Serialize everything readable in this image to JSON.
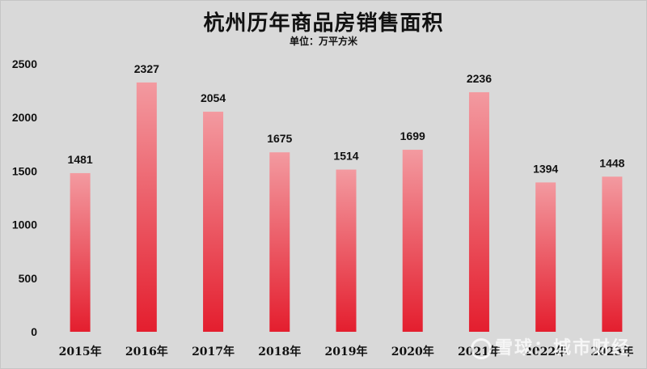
{
  "chart_data": {
    "type": "bar",
    "title": "杭州历年商品房销售面积",
    "subtitle": "单位：万平方米",
    "categories": [
      "2015年",
      "2016年",
      "2017年",
      "2018年",
      "2019年",
      "2020年",
      "2021年",
      "2022年",
      "2023年"
    ],
    "values": [
      1481,
      2327,
      2054,
      1675,
      1514,
      1699,
      2236,
      1394,
      1448
    ],
    "yticks": [
      0,
      500,
      1000,
      1500,
      2000,
      2500
    ],
    "ylim": [
      0,
      2500
    ],
    "xlabel": "",
    "ylabel": "",
    "grid": false,
    "bar_color_top": "#f39aa0",
    "bar_color_bottom": "#e41e2e",
    "background": "#d9d9d9"
  },
  "watermark": "雪球：城市财经"
}
